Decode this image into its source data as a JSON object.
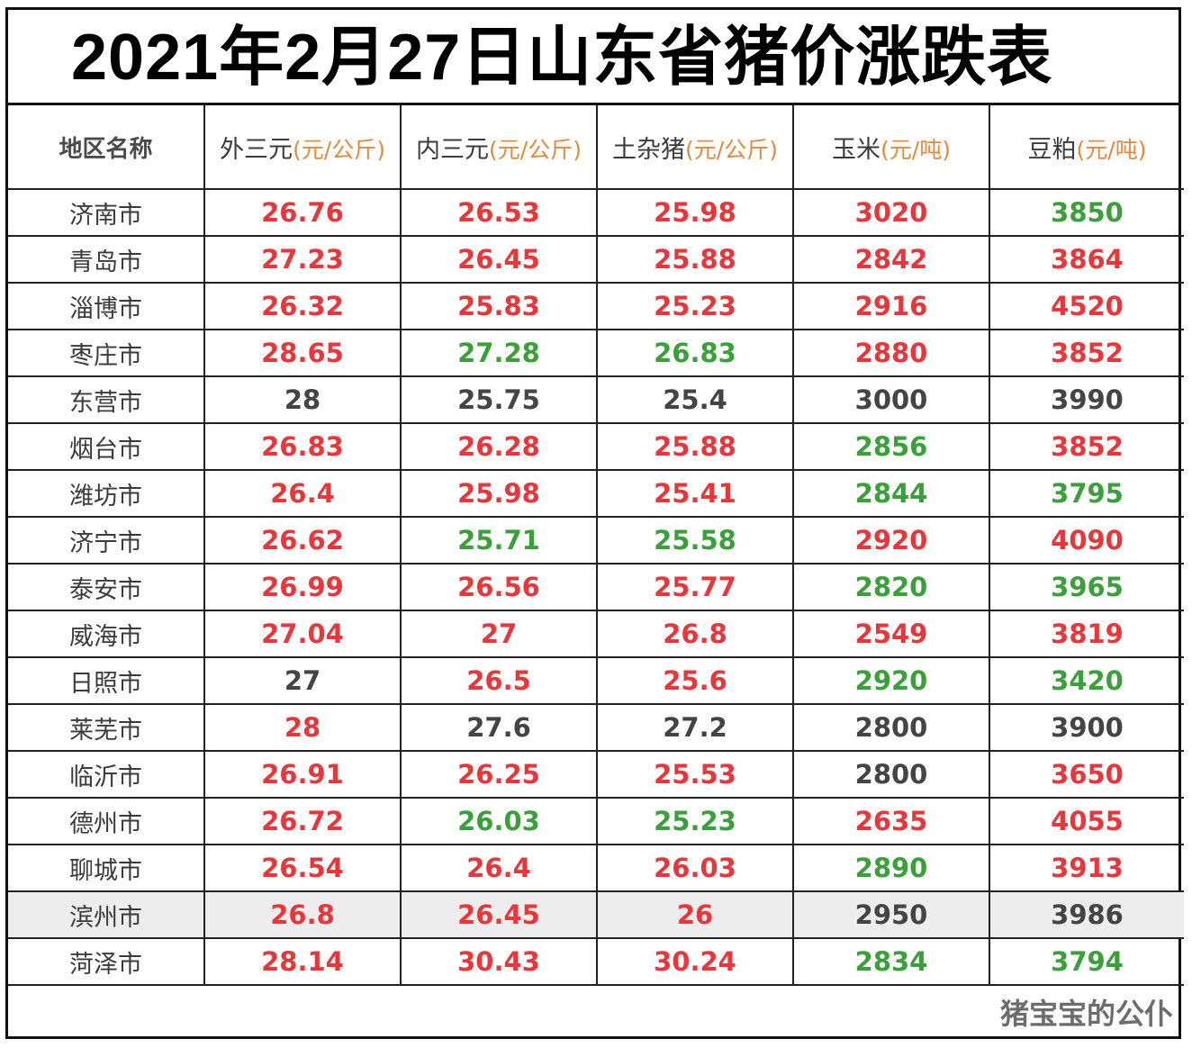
{
  "title": "2021年2月27日山东省猪价涨跌表",
  "headers": [
    {
      "label": "地区名称",
      "unit": ""
    },
    {
      "label": "外三元",
      "unit": "(元/公斤)"
    },
    {
      "label": "内三元",
      "unit": "(元/公斤)"
    },
    {
      "label": "土杂猪",
      "unit": "(元/公斤)"
    },
    {
      "label": "玉米",
      "unit": "(元/吨)"
    },
    {
      "label": "豆粕",
      "unit": "(元/吨)"
    }
  ],
  "colors": {
    "up": "#e8363a",
    "down": "#3aa13a",
    "flat": "#444444",
    "unit": "#e8893a"
  },
  "rows": [
    {
      "region": "济南市",
      "values": [
        "26.76",
        "26.53",
        "25.98",
        "3020",
        "3850"
      ],
      "trend": [
        "up",
        "up",
        "up",
        "up",
        "down"
      ]
    },
    {
      "region": "青岛市",
      "values": [
        "27.23",
        "26.45",
        "25.88",
        "2842",
        "3864"
      ],
      "trend": [
        "up",
        "up",
        "up",
        "up",
        "up"
      ]
    },
    {
      "region": "淄博市",
      "values": [
        "26.32",
        "25.83",
        "25.23",
        "2916",
        "4520"
      ],
      "trend": [
        "up",
        "up",
        "up",
        "up",
        "up"
      ]
    },
    {
      "region": "枣庄市",
      "values": [
        "28.65",
        "27.28",
        "26.83",
        "2880",
        "3852"
      ],
      "trend": [
        "up",
        "down",
        "down",
        "up",
        "up"
      ]
    },
    {
      "region": "东营市",
      "values": [
        "28",
        "25.75",
        "25.4",
        "3000",
        "3990"
      ],
      "trend": [
        "flat",
        "flat",
        "flat",
        "flat",
        "flat"
      ]
    },
    {
      "region": "烟台市",
      "values": [
        "26.83",
        "26.28",
        "25.88",
        "2856",
        "3852"
      ],
      "trend": [
        "up",
        "up",
        "up",
        "down",
        "up"
      ]
    },
    {
      "region": "潍坊市",
      "values": [
        "26.4",
        "25.98",
        "25.41",
        "2844",
        "3795"
      ],
      "trend": [
        "up",
        "up",
        "up",
        "down",
        "down"
      ]
    },
    {
      "region": "济宁市",
      "values": [
        "26.62",
        "25.71",
        "25.58",
        "2920",
        "4090"
      ],
      "trend": [
        "up",
        "down",
        "down",
        "up",
        "up"
      ]
    },
    {
      "region": "泰安市",
      "values": [
        "26.99",
        "26.56",
        "25.77",
        "2820",
        "3965"
      ],
      "trend": [
        "up",
        "up",
        "up",
        "down",
        "down"
      ]
    },
    {
      "region": "威海市",
      "values": [
        "27.04",
        "27",
        "26.8",
        "2549",
        "3819"
      ],
      "trend": [
        "up",
        "up",
        "up",
        "up",
        "up"
      ]
    },
    {
      "region": "日照市",
      "values": [
        "27",
        "26.5",
        "25.6",
        "2920",
        "3420"
      ],
      "trend": [
        "flat",
        "up",
        "up",
        "down",
        "down"
      ]
    },
    {
      "region": "莱芜市",
      "values": [
        "28",
        "27.6",
        "27.2",
        "2800",
        "3900"
      ],
      "trend": [
        "up",
        "flat",
        "flat",
        "flat",
        "flat"
      ]
    },
    {
      "region": "临沂市",
      "values": [
        "26.91",
        "26.25",
        "25.53",
        "2800",
        "3650"
      ],
      "trend": [
        "up",
        "up",
        "up",
        "flat",
        "up"
      ]
    },
    {
      "region": "德州市",
      "values": [
        "26.72",
        "26.03",
        "25.23",
        "2635",
        "4055"
      ],
      "trend": [
        "up",
        "down",
        "down",
        "up",
        "up"
      ]
    },
    {
      "region": "聊城市",
      "values": [
        "26.54",
        "26.4",
        "26.03",
        "2890",
        "3913"
      ],
      "trend": [
        "up",
        "up",
        "up",
        "down",
        "up"
      ]
    },
    {
      "region": "滨州市",
      "values": [
        "26.8",
        "26.45",
        "26",
        "2950",
        "3986"
      ],
      "trend": [
        "up",
        "up",
        "up",
        "flat",
        "flat"
      ],
      "shaded": true
    },
    {
      "region": "菏泽市",
      "values": [
        "28.14",
        "30.43",
        "30.24",
        "2834",
        "3794"
      ],
      "trend": [
        "up",
        "up",
        "up",
        "down",
        "down"
      ]
    }
  ],
  "brand": "猪宝宝的公仆"
}
